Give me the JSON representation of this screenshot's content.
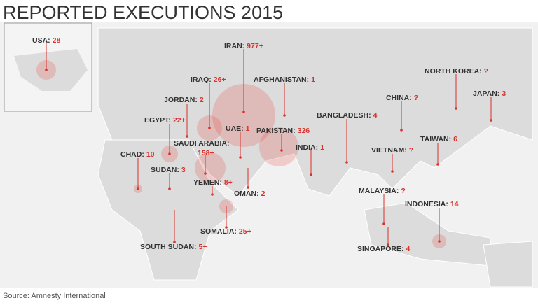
{
  "title": "REPORTED EXECUTIONS 2015",
  "source": "Source: Amnesty International",
  "countries": [
    {
      "name": "USA:",
      "value": "28"
    },
    {
      "name": "IRAN:",
      "value": "977+"
    },
    {
      "name": "IRAQ:",
      "value": "26+"
    },
    {
      "name": "AFGHANISTAN:",
      "value": "1"
    },
    {
      "name": "JORDAN:",
      "value": "2"
    },
    {
      "name": "CHINA:",
      "value": "?"
    },
    {
      "name": "NORTH KOREA:",
      "value": "?"
    },
    {
      "name": "JAPAN:",
      "value": "3"
    },
    {
      "name": "EGYPT:",
      "value": "22+"
    },
    {
      "name": "UAE:",
      "value": "1"
    },
    {
      "name": "PAKISTAN:",
      "value": "326"
    },
    {
      "name": "BANGLADESH:",
      "value": "4"
    },
    {
      "name": "SAUDI ARABIA:",
      "value": "158+"
    },
    {
      "name": "INDIA:",
      "value": "1"
    },
    {
      "name": "TAIWAN:",
      "value": "6"
    },
    {
      "name": "VIETNAM:",
      "value": "?"
    },
    {
      "name": "CHAD:",
      "value": "10"
    },
    {
      "name": "SUDAN:",
      "value": "3"
    },
    {
      "name": "YEMEN:",
      "value": "8+"
    },
    {
      "name": "OMAN:",
      "value": "2"
    },
    {
      "name": "MALAYSIA:",
      "value": "?"
    },
    {
      "name": "INDONESIA:",
      "value": "14"
    },
    {
      "name": "SOMALIA:",
      "value": "25+"
    },
    {
      "name": "SOUTH SUDAN:",
      "value": "5+"
    },
    {
      "name": "SINGAPORE:",
      "value": "4"
    }
  ]
}
